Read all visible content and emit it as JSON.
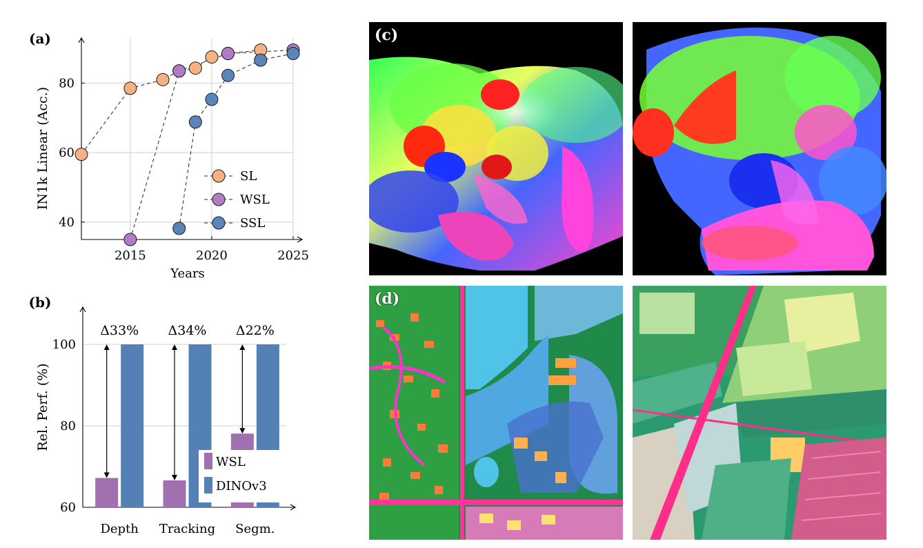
{
  "chart_data": [
    {
      "type": "line",
      "panel_label": "(a)",
      "xlabel": "Years",
      "ylabel": "IN1k Linear (Acc.)",
      "xlim": [
        2012,
        2025
      ],
      "ylim": [
        35,
        90
      ],
      "xticks": [
        2015,
        2020,
        2025
      ],
      "yticks": [
        40,
        60,
        80
      ],
      "grid": true,
      "legend_position": "bottom-right",
      "series": [
        {
          "name": "SL",
          "color": "#f4b183",
          "x": [
            2012,
            2015,
            2017,
            2018,
            2019,
            2020,
            2021,
            2023
          ],
          "y": [
            59.5,
            78.5,
            81,
            83.5,
            84.3,
            87.5,
            88.5,
            89.5
          ]
        },
        {
          "name": "WSL",
          "color": "#b07cc6",
          "x": [
            2015,
            2018,
            2021,
            2025
          ],
          "y": [
            35,
            83.5,
            88.5,
            89.5
          ]
        },
        {
          "name": "SSL",
          "color": "#5b85b8",
          "x": [
            2018,
            2019,
            2020,
            2021,
            2023,
            2025
          ],
          "y": [
            38.2,
            68.8,
            75.3,
            82.2,
            86.6,
            88.5
          ]
        }
      ]
    },
    {
      "type": "bar",
      "panel_label": "(b)",
      "ylabel": "Rel. Perf. (%)",
      "categories": [
        "Depth",
        "Tracking",
        "Segm."
      ],
      "ylim": [
        60,
        110
      ],
      "yticks": [
        60,
        80,
        100
      ],
      "grid": true,
      "legend_position": "bottom-right",
      "series": [
        {
          "name": "WSL",
          "color": "#a070b0",
          "values": [
            67.2,
            66.6,
            78.1
          ]
        },
        {
          "name": "DINOv3",
          "color": "#5380b5",
          "values": [
            100,
            100,
            100
          ]
        }
      ],
      "annotations": [
        "Δ33%",
        "Δ34%",
        "Δ22%"
      ]
    }
  ],
  "panels": {
    "c": {
      "label": "(c)"
    },
    "d": {
      "label": "(d)"
    }
  }
}
